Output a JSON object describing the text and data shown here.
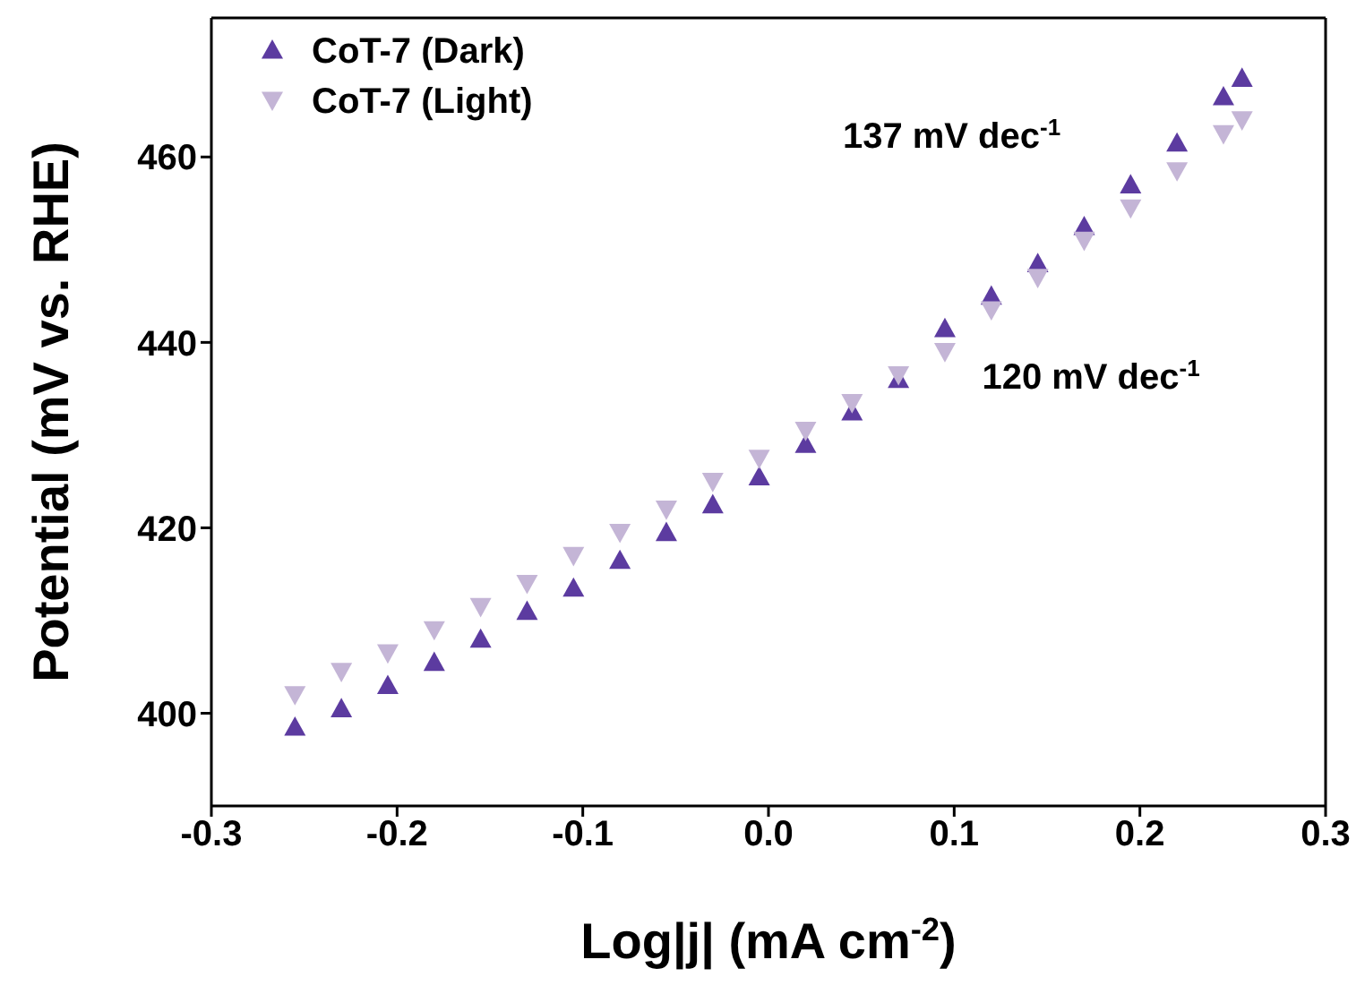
{
  "chart_data": {
    "type": "scatter",
    "xlabel": "Log|j| (mA cm$^{-2}$)",
    "ylabel": "Potential (mV vs. RHE)",
    "xlim": [
      -0.3,
      0.3
    ],
    "xticks": [
      -0.3,
      -0.2,
      -0.1,
      {
        "value": 0,
        "label": "0.0"
      },
      0.1,
      0.2,
      0.3
    ],
    "ylim": [
      390,
      475
    ],
    "yticks": [
      400,
      420,
      440,
      460
    ],
    "grid": false,
    "legend": "top left",
    "annotations": [
      "137 mV dec$^{-1}$",
      "120 mV dec$^{-1}$"
    ],
    "series": [
      {
        "name": "CoT-7 (Dark)",
        "color": "#5c3ba0",
        "marker": "triangle",
        "x": [
          -0.255,
          -0.23,
          -0.205,
          -0.18,
          -0.155,
          -0.13,
          -0.105,
          -0.08,
          -0.055,
          -0.03,
          -0.005,
          0.02,
          0.045,
          0.07,
          0.095,
          0.12,
          0.145,
          0.17,
          0.195,
          0.22,
          0.245,
          0.255
        ],
        "values": [
          398.5,
          400.5,
          403,
          405.5,
          408,
          411,
          413.5,
          416.5,
          419.5,
          422.5,
          425.5,
          429,
          432.5,
          436,
          441.5,
          445,
          448.5,
          452.5,
          457,
          461.5,
          466.5,
          468.5
        ]
      },
      {
        "name": "CoT-7 (Light)",
        "color": "#c4b5d6",
        "marker": "triangle-down",
        "x": [
          -0.255,
          -0.23,
          -0.205,
          -0.18,
          -0.155,
          -0.13,
          -0.105,
          -0.08,
          -0.055,
          -0.03,
          -0.005,
          0.02,
          0.045,
          0.07,
          0.095,
          0.12,
          0.145,
          0.17,
          0.195,
          0.22,
          0.245,
          0.255
        ],
        "values": [
          402,
          404.5,
          406.5,
          409,
          411.5,
          414,
          417,
          419.5,
          422,
          425,
          427.5,
          430.5,
          433.5,
          436.5,
          439,
          443.5,
          447,
          451,
          454.5,
          458.5,
          462.5,
          464
        ]
      }
    ]
  }
}
